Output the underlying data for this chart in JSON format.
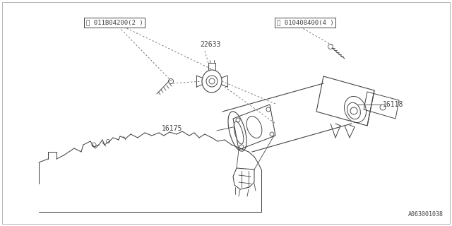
{
  "bg_color": "#ffffff",
  "border_color": "#aaaaaa",
  "line_color": "#444444",
  "part_label_s": "Ⓢ 011B04200(2 )",
  "part_label_b": "Ⓑ 010408400(4 )",
  "part_22633": "22633",
  "part_16118": "16118",
  "part_16175": "16175",
  "diagram_id": "A063001038",
  "figsize": [
    6.4,
    3.2
  ],
  "dpi": 100
}
